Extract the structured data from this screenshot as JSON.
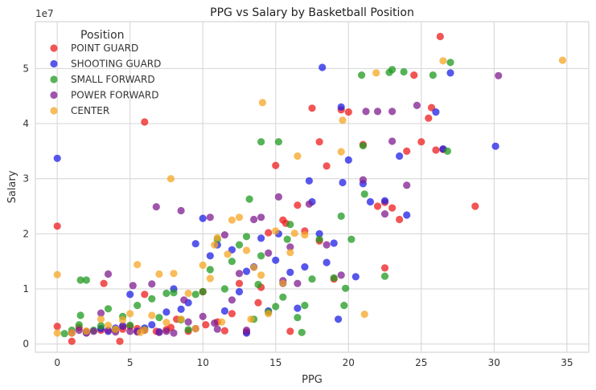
{
  "chart_data": {
    "type": "scatter",
    "title": "PPG vs Salary by Basketball Position",
    "xlabel": "PPG",
    "ylabel": "Salary",
    "y_offset_label": "1e7",
    "xlim": [
      -1.5,
      36.5
    ],
    "ylim": [
      -1500000,
      58500000
    ],
    "x_ticks": [
      0,
      5,
      10,
      15,
      20,
      25,
      30,
      35
    ],
    "y_ticks": [
      0,
      10000000,
      20000000,
      30000000,
      40000000,
      50000000
    ],
    "y_tick_labels": [
      "0",
      "1",
      "2",
      "3",
      "4",
      "5"
    ],
    "grid": true,
    "legend_title": "Position",
    "legend_position": "top-left",
    "series": [
      {
        "name": "POINT GUARD",
        "color": "#ee1c1c",
        "points": [
          [
            0,
            21400000
          ],
          [
            0,
            3200000
          ],
          [
            1.5,
            3000000
          ],
          [
            1,
            500000
          ],
          [
            2,
            2300000
          ],
          [
            3,
            2500000
          ],
          [
            3.2,
            11000000
          ],
          [
            4,
            2600000
          ],
          [
            4.3,
            500000
          ],
          [
            4.5,
            2700000
          ],
          [
            5,
            3200000
          ],
          [
            5.5,
            2800000
          ],
          [
            6,
            40300000
          ],
          [
            6,
            9000000
          ],
          [
            6.8,
            2300000
          ],
          [
            7.5,
            2600000
          ],
          [
            7.8,
            3000000
          ],
          [
            8.2,
            4500000
          ],
          [
            9,
            2300000
          ],
          [
            10,
            9500000
          ],
          [
            10.2,
            3500000
          ],
          [
            11,
            4000000
          ],
          [
            11.5,
            2400000
          ],
          [
            12,
            5500000
          ],
          [
            12.5,
            11000000
          ],
          [
            13,
            2200000
          ],
          [
            13.8,
            7500000
          ],
          [
            14,
            10300000
          ],
          [
            14.5,
            20200000
          ],
          [
            15,
            32400000
          ],
          [
            15.5,
            22500000
          ],
          [
            15.7,
            21900000
          ],
          [
            16,
            2300000
          ],
          [
            16.5,
            25200000
          ],
          [
            17,
            20500000
          ],
          [
            17.5,
            42800000
          ],
          [
            18,
            36700000
          ],
          [
            18,
            18700000
          ],
          [
            18.5,
            32300000
          ],
          [
            19,
            11800000
          ],
          [
            19.5,
            42500000
          ],
          [
            20,
            42100000
          ],
          [
            21,
            36200000
          ],
          [
            22,
            25000000
          ],
          [
            22.5,
            13800000
          ],
          [
            22.5,
            25700000
          ],
          [
            23,
            24700000
          ],
          [
            23.5,
            22600000
          ],
          [
            24,
            35000000
          ],
          [
            24.5,
            48800000
          ],
          [
            25,
            36700000
          ],
          [
            25.5,
            41000000
          ],
          [
            25.7,
            42900000
          ],
          [
            26,
            35200000
          ],
          [
            26.3,
            55800000
          ],
          [
            26.5,
            35300000
          ],
          [
            28.7,
            25000000
          ]
        ]
      },
      {
        "name": "SHOOTING GUARD",
        "color": "#1f1fe6",
        "points": [
          [
            0,
            33700000
          ],
          [
            2,
            2100000
          ],
          [
            3,
            2800000
          ],
          [
            3.5,
            2300000
          ],
          [
            4,
            2900000
          ],
          [
            4.5,
            3300000
          ],
          [
            5,
            9000000
          ],
          [
            5.5,
            2300000
          ],
          [
            6,
            2900000
          ],
          [
            6.5,
            3500000
          ],
          [
            7,
            2200000
          ],
          [
            7.5,
            5800000
          ],
          [
            8,
            10000000
          ],
          [
            8.5,
            6300000
          ],
          [
            9,
            7500000
          ],
          [
            9.5,
            18200000
          ],
          [
            10,
            22800000
          ],
          [
            10.5,
            16000000
          ],
          [
            11,
            18000000
          ],
          [
            11.5,
            6000000
          ],
          [
            12,
            17100000
          ],
          [
            12.5,
            9500000
          ],
          [
            13,
            2000000
          ],
          [
            13,
            13200000
          ],
          [
            13.5,
            14000000
          ],
          [
            14,
            19200000
          ],
          [
            14.5,
            6000000
          ],
          [
            15,
            15200000
          ],
          [
            15.2,
            20000000
          ],
          [
            15.5,
            11000000
          ],
          [
            16,
            13000000
          ],
          [
            16.5,
            6500000
          ],
          [
            17,
            14000000
          ],
          [
            17.3,
            29600000
          ],
          [
            17.5,
            25800000
          ],
          [
            18,
            20000000
          ],
          [
            18.2,
            50200000
          ],
          [
            18.5,
            14800000
          ],
          [
            19,
            18300000
          ],
          [
            19.3,
            4500000
          ],
          [
            19.5,
            43000000
          ],
          [
            19.6,
            29300000
          ],
          [
            20,
            33400000
          ],
          [
            20.5,
            12200000
          ],
          [
            21,
            29100000
          ],
          [
            21.5,
            25800000
          ],
          [
            22.5,
            26000000
          ],
          [
            23.5,
            34100000
          ],
          [
            24,
            23400000
          ],
          [
            26,
            42100000
          ],
          [
            26.5,
            35400000
          ],
          [
            27,
            49200000
          ],
          [
            30.1,
            35900000
          ]
        ]
      },
      {
        "name": "SMALL FORWARD",
        "color": "#1f9a1f",
        "points": [
          [
            0.5,
            1900000
          ],
          [
            1,
            2500000
          ],
          [
            1.5,
            3500000
          ],
          [
            1.6,
            11600000
          ],
          [
            2,
            11600000
          ],
          [
            1.6,
            5200000
          ],
          [
            2.5,
            2500000
          ],
          [
            3,
            3300000
          ],
          [
            3.5,
            6400000
          ],
          [
            4,
            2600000
          ],
          [
            4.5,
            5000000
          ],
          [
            5,
            3400000
          ],
          [
            5.5,
            7000000
          ],
          [
            6,
            2600000
          ],
          [
            6.5,
            8200000
          ],
          [
            7,
            4800000
          ],
          [
            7.5,
            9200000
          ],
          [
            8,
            9300000
          ],
          [
            8.5,
            4400000
          ],
          [
            9,
            2600000
          ],
          [
            9.5,
            9000000
          ],
          [
            10,
            9500000
          ],
          [
            10.5,
            13500000
          ],
          [
            11,
            19000000
          ],
          [
            11.5,
            10000000
          ],
          [
            12,
            15000000
          ],
          [
            12.5,
            18000000
          ],
          [
            13,
            19500000
          ],
          [
            13.2,
            26300000
          ],
          [
            13.5,
            4500000
          ],
          [
            13.8,
            10800000
          ],
          [
            14,
            36700000
          ],
          [
            14,
            16000000
          ],
          [
            14.5,
            5800000
          ],
          [
            15,
            6800000
          ],
          [
            15.2,
            36700000
          ],
          [
            15.5,
            8500000
          ],
          [
            15.8,
            19000000
          ],
          [
            16,
            21700000
          ],
          [
            16.5,
            4800000
          ],
          [
            16.8,
            2100000
          ],
          [
            17,
            7000000
          ],
          [
            17.5,
            11800000
          ],
          [
            18,
            19000000
          ],
          [
            19,
            12000000
          ],
          [
            19.5,
            23200000
          ],
          [
            19.7,
            7000000
          ],
          [
            19.8,
            10100000
          ],
          [
            20.2,
            19000000
          ],
          [
            20.9,
            48800000
          ],
          [
            21,
            36000000
          ],
          [
            21.1,
            27200000
          ],
          [
            22.5,
            12300000
          ],
          [
            22.8,
            49300000
          ],
          [
            23,
            49800000
          ],
          [
            23.8,
            49400000
          ],
          [
            25.8,
            48800000
          ],
          [
            27,
            51100000
          ],
          [
            26.8,
            35000000
          ]
        ]
      },
      {
        "name": "POWER FORWARD",
        "color": "#7f1c8f",
        "points": [
          [
            1,
            2000000
          ],
          [
            1.5,
            2500000
          ],
          [
            2,
            2000000
          ],
          [
            2.5,
            2300000
          ],
          [
            3,
            5600000
          ],
          [
            3.5,
            12700000
          ],
          [
            3.5,
            2500000
          ],
          [
            4,
            2200000
          ],
          [
            4.5,
            3200000
          ],
          [
            5,
            2300000
          ],
          [
            5.2,
            10600000
          ],
          [
            5.5,
            2200000
          ],
          [
            6,
            2500000
          ],
          [
            6.5,
            10900000
          ],
          [
            6.8,
            24900000
          ],
          [
            7,
            2100000
          ],
          [
            7.5,
            2300000
          ],
          [
            8,
            2000000
          ],
          [
            8.5,
            24200000
          ],
          [
            8.7,
            8000000
          ],
          [
            9,
            4000000
          ],
          [
            9.5,
            2800000
          ],
          [
            10,
            5000000
          ],
          [
            10.5,
            23000000
          ],
          [
            10.8,
            3800000
          ],
          [
            11,
            2700000
          ],
          [
            11.5,
            19800000
          ],
          [
            12,
            8000000
          ],
          [
            12.5,
            12800000
          ],
          [
            13,
            2500000
          ],
          [
            13.5,
            22600000
          ],
          [
            14,
            23000000
          ],
          [
            14.5,
            16500000
          ],
          [
            15.2,
            26700000
          ],
          [
            15.5,
            11500000
          ],
          [
            16,
            17600000
          ],
          [
            16.5,
            11000000
          ],
          [
            17.3,
            25400000
          ],
          [
            18.5,
            18000000
          ],
          [
            19.5,
            12500000
          ],
          [
            21,
            29800000
          ],
          [
            21.2,
            42200000
          ],
          [
            22,
            42200000
          ],
          [
            22.5,
            23600000
          ],
          [
            23,
            36800000
          ],
          [
            23,
            42200000
          ],
          [
            24,
            28800000
          ],
          [
            24.7,
            43300000
          ],
          [
            30.3,
            48700000
          ]
        ]
      },
      {
        "name": "CENTER",
        "color": "#f5a623",
        "points": [
          [
            0,
            12600000
          ],
          [
            0,
            2000000
          ],
          [
            1,
            2000000
          ],
          [
            2,
            2300000
          ],
          [
            3,
            4500000
          ],
          [
            3.5,
            3400000
          ],
          [
            4,
            2700000
          ],
          [
            4.5,
            4400000
          ],
          [
            5,
            5500000
          ],
          [
            5.5,
            14400000
          ],
          [
            5.7,
            2100000
          ],
          [
            6,
            2500000
          ],
          [
            6.5,
            5200000
          ],
          [
            7,
            12700000
          ],
          [
            7.5,
            3900000
          ],
          [
            7.8,
            30000000
          ],
          [
            8,
            12800000
          ],
          [
            8.5,
            4500000
          ],
          [
            9,
            9200000
          ],
          [
            9.5,
            2800000
          ],
          [
            10,
            14300000
          ],
          [
            10.5,
            11900000
          ],
          [
            10.8,
            18000000
          ],
          [
            11,
            19300000
          ],
          [
            11.3,
            4000000
          ],
          [
            11.7,
            16300000
          ],
          [
            12,
            22500000
          ],
          [
            12.5,
            23000000
          ],
          [
            13,
            17000000
          ],
          [
            13.3,
            4500000
          ],
          [
            13.5,
            13900000
          ],
          [
            14,
            12500000
          ],
          [
            14.1,
            43800000
          ],
          [
            14.5,
            5500000
          ],
          [
            15,
            20500000
          ],
          [
            15.5,
            11000000
          ],
          [
            16,
            16600000
          ],
          [
            16.3,
            20100000
          ],
          [
            16.5,
            34100000
          ],
          [
            17,
            19800000
          ],
          [
            19.5,
            34900000
          ],
          [
            19.6,
            40600000
          ],
          [
            21.1,
            5400000
          ],
          [
            21.9,
            49200000
          ],
          [
            26.5,
            51400000
          ],
          [
            34.7,
            51500000
          ]
        ]
      }
    ]
  }
}
